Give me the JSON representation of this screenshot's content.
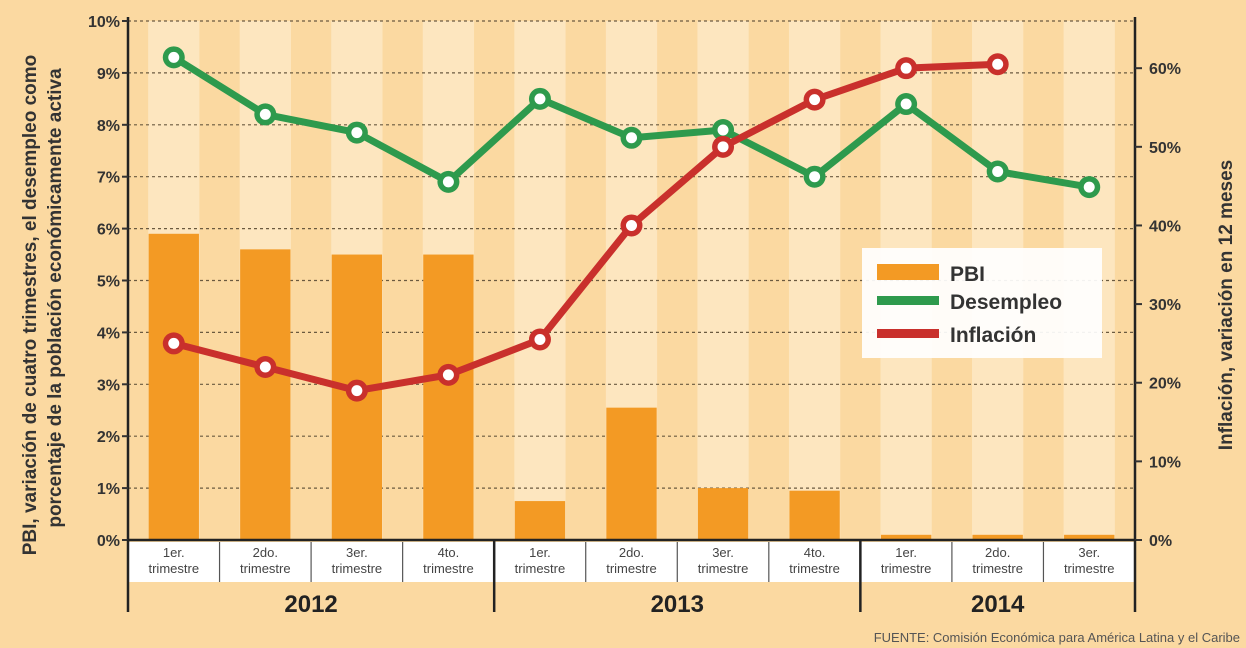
{
  "chart_data": {
    "type": "bar-line",
    "left_axis": {
      "label_line1": "PBI, variación de cuatro trimestres, el desempleo como",
      "label_line2": "porcentaje de la población económicamente activa",
      "ticks": [
        "0%",
        "1%",
        "2%",
        "3%",
        "4%",
        "5%",
        "6%",
        "7%",
        "8%",
        "9%",
        "10%"
      ],
      "ylim": [
        0,
        10
      ]
    },
    "right_axis": {
      "label": "Inflación, variación en 12 meses",
      "ticks": [
        "0%",
        "10%",
        "20%",
        "30%",
        "40%",
        "50%",
        "60%"
      ],
      "ylim": [
        0,
        66
      ]
    },
    "categories": [
      [
        "1er.",
        "trimestre"
      ],
      [
        "2do.",
        "trimestre"
      ],
      [
        "3er.",
        "trimestre"
      ],
      [
        "4to.",
        "trimestre"
      ],
      [
        "1er.",
        "trimestre"
      ],
      [
        "2do.",
        "trimestre"
      ],
      [
        "3er.",
        "trimestre"
      ],
      [
        "4to.",
        "trimestre"
      ],
      [
        "1er.",
        "trimestre"
      ],
      [
        "2do.",
        "trimestre"
      ],
      [
        "3er.",
        "trimestre"
      ]
    ],
    "years": [
      "2012",
      "2013",
      "2014"
    ],
    "series": [
      {
        "name": "PBI",
        "axis": "left",
        "kind": "bar",
        "color": "#f39a24",
        "values": [
          5.9,
          5.6,
          5.5,
          5.5,
          0.75,
          2.55,
          1.0,
          0.95,
          0.1,
          0.1,
          0.1
        ]
      },
      {
        "name": "Desempleo",
        "axis": "left",
        "kind": "line",
        "color": "#2e9a4d",
        "values": [
          9.3,
          8.2,
          7.85,
          6.9,
          8.5,
          7.75,
          7.9,
          7.0,
          8.4,
          7.1,
          6.8
        ]
      },
      {
        "name": "Inflación",
        "axis": "right",
        "kind": "line",
        "color": "#c9302c",
        "values": [
          25,
          22,
          19,
          21,
          25.5,
          40,
          50,
          56,
          60,
          60.5,
          null
        ]
      }
    ],
    "legend_placement": "right-middle",
    "source": "FUENTE: Comisión Económica para América Latina y el Caribe"
  }
}
